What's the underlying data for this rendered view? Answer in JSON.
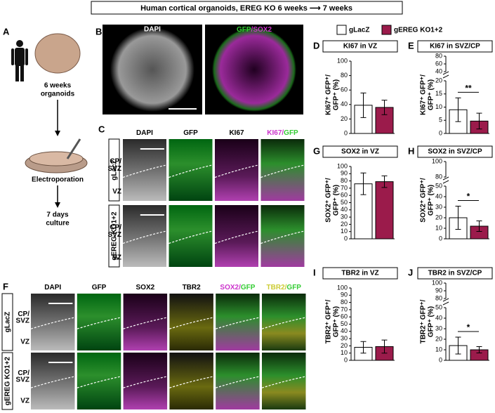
{
  "header": {
    "title": "Human cortical organoids, EREG KO 6 weeks ⟶ 7 weeks"
  },
  "panel_a": {
    "letter": "A",
    "organoid_label": [
      "6 weeks",
      "organoids"
    ],
    "step": "Electroporation",
    "culture_label": [
      "7 days",
      "culture"
    ]
  },
  "panel_b": {
    "letter": "B",
    "left": "DAPI",
    "right": [
      "GFP",
      "/SOX2"
    ]
  },
  "panel_c": {
    "letter": "C",
    "columns": [
      [
        "DAPI"
      ],
      [
        "GFP"
      ],
      [
        "KI67"
      ],
      [
        "KI67/",
        "GFP"
      ]
    ],
    "rows": [
      "gLacZ",
      "gEREG KO1+2"
    ],
    "zones": [
      "CP/",
      "SVZ",
      "VZ"
    ]
  },
  "panel_f": {
    "letter": "F",
    "columns": [
      [
        "DAPI"
      ],
      [
        "GFP"
      ],
      [
        "SOX2"
      ],
      [
        "TBR2"
      ],
      [
        "SOX2/",
        "GFP"
      ],
      [
        "TBR2/",
        "GFP"
      ]
    ],
    "rows": [
      "gLacZ",
      "gEREG KO1+2"
    ],
    "zones": [
      "CP/",
      "SVZ",
      "VZ"
    ]
  },
  "legend": [
    {
      "name": "gLacZ",
      "color": "#ffffff"
    },
    {
      "name": "gEREG KO1+2",
      "color": "#9b1b4b"
    }
  ],
  "chart_data": [
    {
      "type": "bar",
      "letter": "D",
      "title": "KI67 in VZ",
      "ylabel": [
        "KI67⁺ GFP⁺/",
        "GFP⁺ (%)"
      ],
      "values": [
        39,
        36
      ],
      "errors": [
        17,
        10
      ],
      "ylim": [
        0,
        100
      ],
      "yticks": [
        0,
        20,
        40,
        60,
        80,
        100
      ]
    },
    {
      "type": "bar",
      "letter": "E",
      "title": "KI67 in SVZ/CP",
      "ylabel": [
        "KI67⁺ GFP⁺/",
        "GFP⁺ (%)"
      ],
      "values": [
        9,
        4.7
      ],
      "errors": [
        4.5,
        3
      ],
      "ylim": [
        0,
        20
      ],
      "yticks": [
        0,
        5,
        10,
        15,
        20
      ],
      "upper_ylim": [
        40,
        80
      ],
      "upper_yticks": [
        40,
        60,
        80
      ],
      "significance": "**"
    },
    {
      "type": "bar",
      "letter": "G",
      "title": "SOX2 in VZ",
      "ylabel": [
        "SOX2⁺ GFP⁺/",
        "GFP⁺ (%)"
      ],
      "values": [
        76,
        79
      ],
      "errors": [
        15,
        8
      ],
      "ylim": [
        0,
        100
      ],
      "yticks": [
        0,
        10,
        20,
        30,
        40,
        50,
        60,
        70,
        80,
        90,
        100
      ]
    },
    {
      "type": "bar",
      "letter": "H",
      "title": "SOX2 in SVZ/CP",
      "ylabel": [
        "SOX2⁺ GFP⁺/",
        "GFP⁺ (%)"
      ],
      "values": [
        20,
        12
      ],
      "errors": [
        11,
        5
      ],
      "ylim": [
        0,
        50
      ],
      "yticks": [
        0,
        10,
        20,
        30,
        40,
        50
      ],
      "upper_ylim": [
        80,
        100
      ],
      "upper_yticks": [
        80,
        100
      ],
      "significance": "*"
    },
    {
      "type": "bar",
      "letter": "I",
      "title": "TBR2 in VZ",
      "ylabel": [
        "TBR2⁺ GFP⁺/",
        "GFP⁺ (%)"
      ],
      "values": [
        18,
        19
      ],
      "errors": [
        8,
        9
      ],
      "ylim": [
        0,
        100
      ],
      "yticks": [
        0,
        10,
        20,
        30,
        40,
        50,
        60,
        70,
        80,
        90,
        100
      ]
    },
    {
      "type": "bar",
      "letter": "J",
      "title": "TBR2 in SVZ/CP",
      "ylabel": [
        "TBR2⁺ GFP⁺/",
        "GFP⁺ (%)"
      ],
      "values": [
        14,
        10
      ],
      "errors": [
        8,
        3
      ],
      "ylim": [
        0,
        50
      ],
      "yticks": [
        0,
        10,
        20,
        30,
        40,
        50
      ],
      "upper_ylim": [
        80,
        100
      ],
      "upper_yticks": [
        80,
        90,
        100
      ],
      "significance": "*"
    }
  ]
}
